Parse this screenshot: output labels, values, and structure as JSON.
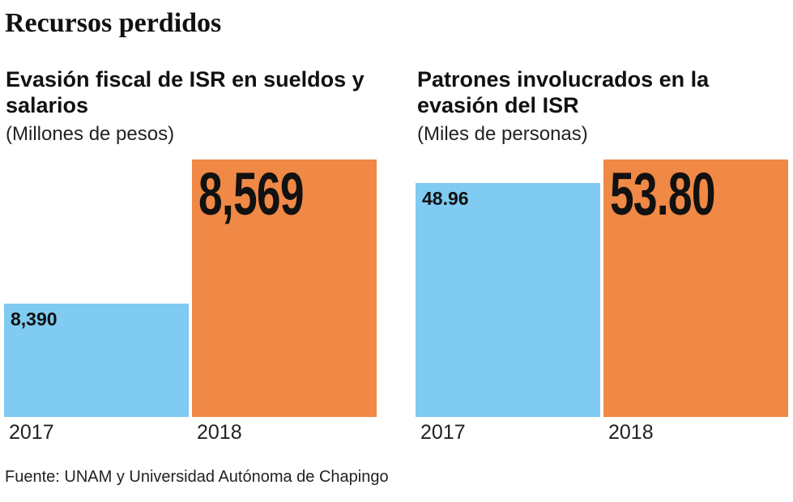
{
  "title": "Recursos perdidos",
  "source": "Fuente: UNAM y Universidad Autónoma de Chapingo",
  "chart_data": [
    {
      "type": "bar",
      "title": "Evasión fiscal de ISR en sueldos y salarios",
      "subtitle": "(Millones de pesos)",
      "categories": [
        "2017",
        "2018"
      ],
      "values": [
        8390,
        8569
      ],
      "value_labels": [
        "8,390",
        "8,569"
      ],
      "colors": [
        "#7fcbf1",
        "#f08846"
      ],
      "ylim": [
        8250,
        8569
      ]
    },
    {
      "type": "bar",
      "title": "Patrones involucrados en la evasión del ISR",
      "subtitle": "(Miles de personas)",
      "categories": [
        "2017",
        "2018"
      ],
      "values": [
        48.96,
        53.8
      ],
      "value_labels": [
        "48.96",
        "53.80"
      ],
      "colors": [
        "#7fcbf1",
        "#f08846"
      ],
      "ylim": [
        0,
        53.8
      ]
    }
  ]
}
